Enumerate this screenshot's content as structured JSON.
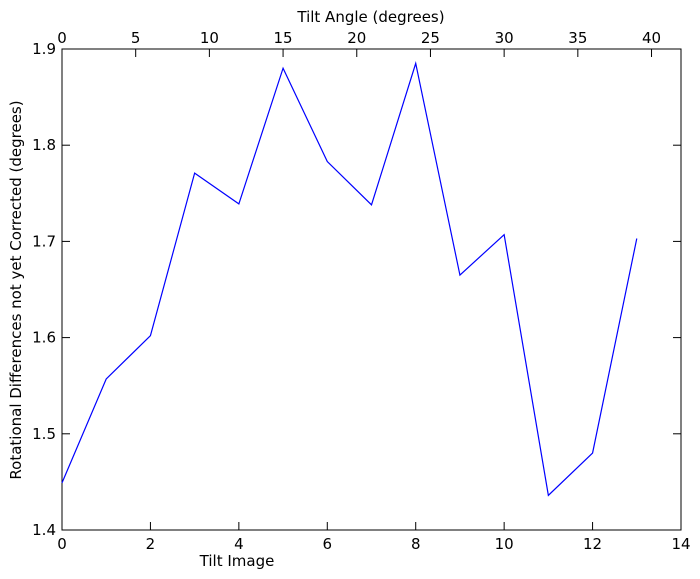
{
  "chart_data": {
    "type": "line",
    "title": "",
    "xlabel": "Tilt Image",
    "ylabel": "Rotational Differences not yet Corrected (degrees)",
    "x2label": "Tilt Angle (degrees)",
    "xlim": [
      0,
      14
    ],
    "ylim": [
      1.4,
      1.9
    ],
    "x2lim": [
      0,
      42
    ],
    "xticks": [
      0,
      2,
      4,
      6,
      8,
      10,
      12,
      14
    ],
    "yticks": [
      "1.4",
      "1.5",
      "1.6",
      "1.7",
      "1.8",
      "1.9"
    ],
    "x2ticks": [
      0,
      5,
      10,
      15,
      20,
      25,
      30,
      35,
      40
    ],
    "grid": false,
    "legend": "none",
    "line_color": "#0000ff",
    "series": [
      {
        "x": [
          0,
          1,
          2,
          3,
          4,
          5,
          6,
          7,
          8,
          9,
          10,
          11,
          12,
          13
        ],
        "values": [
          1.449,
          1.557,
          1.602,
          1.771,
          1.739,
          1.88,
          1.783,
          1.738,
          1.885,
          1.665,
          1.707,
          1.436,
          1.48,
          1.703
        ]
      }
    ]
  }
}
